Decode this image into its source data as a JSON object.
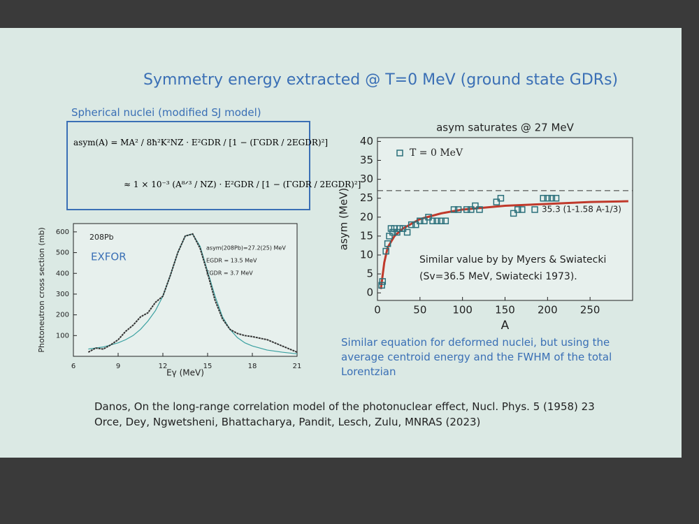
{
  "slide": {
    "title": "Symmetry energy extracted @ T=0 MeV (ground state GDRs)",
    "subtitle": "Spherical nuclei (modified SJ model)",
    "formula": [
      "asym(A)  =  MA² / 8ħ²K²NZ · E²GDR / [1 − (ΓGDR / 2EGDR)²]",
      "≈  1 × 10⁻³ (A⁸ᐟ³ / NZ) · E²GDR / [1 − (ΓGDR / 2EGDR)²]"
    ],
    "note": "Similar equation for deformed nuclei, but using the average centroid energy and the FWHM of the total Lorentzian",
    "references": [
      "Danos, On the long-range correlation model of the photonuclear effect, Nucl. Phys. 5 (1958) 23",
      "Orce, Dey, Ngwetsheni, Bhattacharya, Pandit, Lesch, Zulu, MNRAS (2023)"
    ]
  },
  "chart_data": [
    {
      "type": "line",
      "xlabel": "Eγ (MeV)",
      "ylabel": "Photoneutron cross section (mb)",
      "annotations": [
        "208Pb",
        "EXFOR",
        "asym(208Pb)=27.2(25) MeV",
        "EGDR = 13.5 MeV",
        "ΓGDR = 3.7 MeV"
      ],
      "xlim": [
        6,
        21
      ],
      "xticks": [
        6,
        9,
        12,
        15,
        18,
        21
      ],
      "ylim": [
        0,
        640
      ],
      "yticks": [
        100,
        200,
        300,
        400,
        500,
        600
      ],
      "data": {
        "color": "#333333",
        "x": [
          7,
          7.5,
          8,
          8.5,
          9,
          9.5,
          10,
          10.5,
          11,
          11.5,
          12,
          12.5,
          13,
          13.5,
          14,
          14.5,
          15,
          15.5,
          16,
          16.5,
          17,
          17.5,
          18,
          19,
          20,
          21
        ],
        "values": [
          20,
          40,
          35,
          55,
          80,
          120,
          150,
          190,
          210,
          260,
          290,
          390,
          500,
          580,
          590,
          520,
          400,
          270,
          180,
          130,
          110,
          100,
          95,
          80,
          50,
          20
        ]
      },
      "fit": {
        "color": "#3aa0a0",
        "x": [
          7,
          7.5,
          8,
          8.5,
          9,
          9.5,
          10,
          10.5,
          11,
          11.5,
          12,
          12.5,
          13,
          13.5,
          14,
          14.5,
          15,
          15.5,
          16,
          16.5,
          17,
          17.5,
          18,
          19,
          20,
          21
        ],
        "values": [
          35,
          40,
          45,
          55,
          65,
          80,
          100,
          130,
          170,
          220,
          290,
          390,
          500,
          580,
          590,
          530,
          410,
          290,
          190,
          130,
          90,
          65,
          50,
          30,
          20,
          12
        ]
      }
    },
    {
      "type": "scatter",
      "title": "asym saturates @ 27 MeV",
      "xlabel": "A",
      "ylabel": "asym (MeV)",
      "annotations": [
        "35.3 (1-1.58 A-1/3)",
        "Similar value by  by Myers & Swiatecki",
        "(Sv=36.5 MeV, Swiatecki 1973)."
      ],
      "xlim": [
        0,
        300
      ],
      "xticks": [
        0,
        50,
        100,
        150,
        200,
        250
      ],
      "ylim": [
        -2,
        41
      ],
      "yticks": [
        0,
        5,
        10,
        15,
        20,
        25,
        30,
        35,
        40
      ],
      "series": [
        {
          "name": "T = 0 MeV",
          "color": "#2a6f7a",
          "x": [
            5,
            6,
            10,
            12,
            14,
            16,
            18,
            20,
            23,
            26,
            30,
            35,
            40,
            45,
            50,
            55,
            60,
            65,
            70,
            75,
            80,
            90,
            95,
            105,
            110,
            115,
            120,
            140,
            145,
            160,
            165,
            170,
            185,
            195,
            200,
            205,
            210
          ],
          "values": [
            2,
            3,
            11,
            13,
            15,
            17,
            16,
            17,
            16,
            17,
            17,
            16,
            18,
            18,
            19,
            19,
            20,
            19,
            19,
            19,
            19,
            22,
            22,
            22,
            22,
            23,
            22,
            24,
            25,
            21,
            22,
            22,
            22,
            25,
            25,
            25,
            25
          ]
        }
      ],
      "fit": {
        "color": "#c0392b",
        "x": [
          4,
          8,
          12,
          20,
          30,
          50,
          75,
          100,
          150,
          200,
          250,
          295
        ],
        "values": [
          1,
          8,
          12,
          15,
          17,
          19.5,
          21,
          22,
          23,
          23.5,
          24,
          24.2
        ]
      },
      "reference_line": {
        "value": 27,
        "color": "#333333"
      }
    }
  ]
}
